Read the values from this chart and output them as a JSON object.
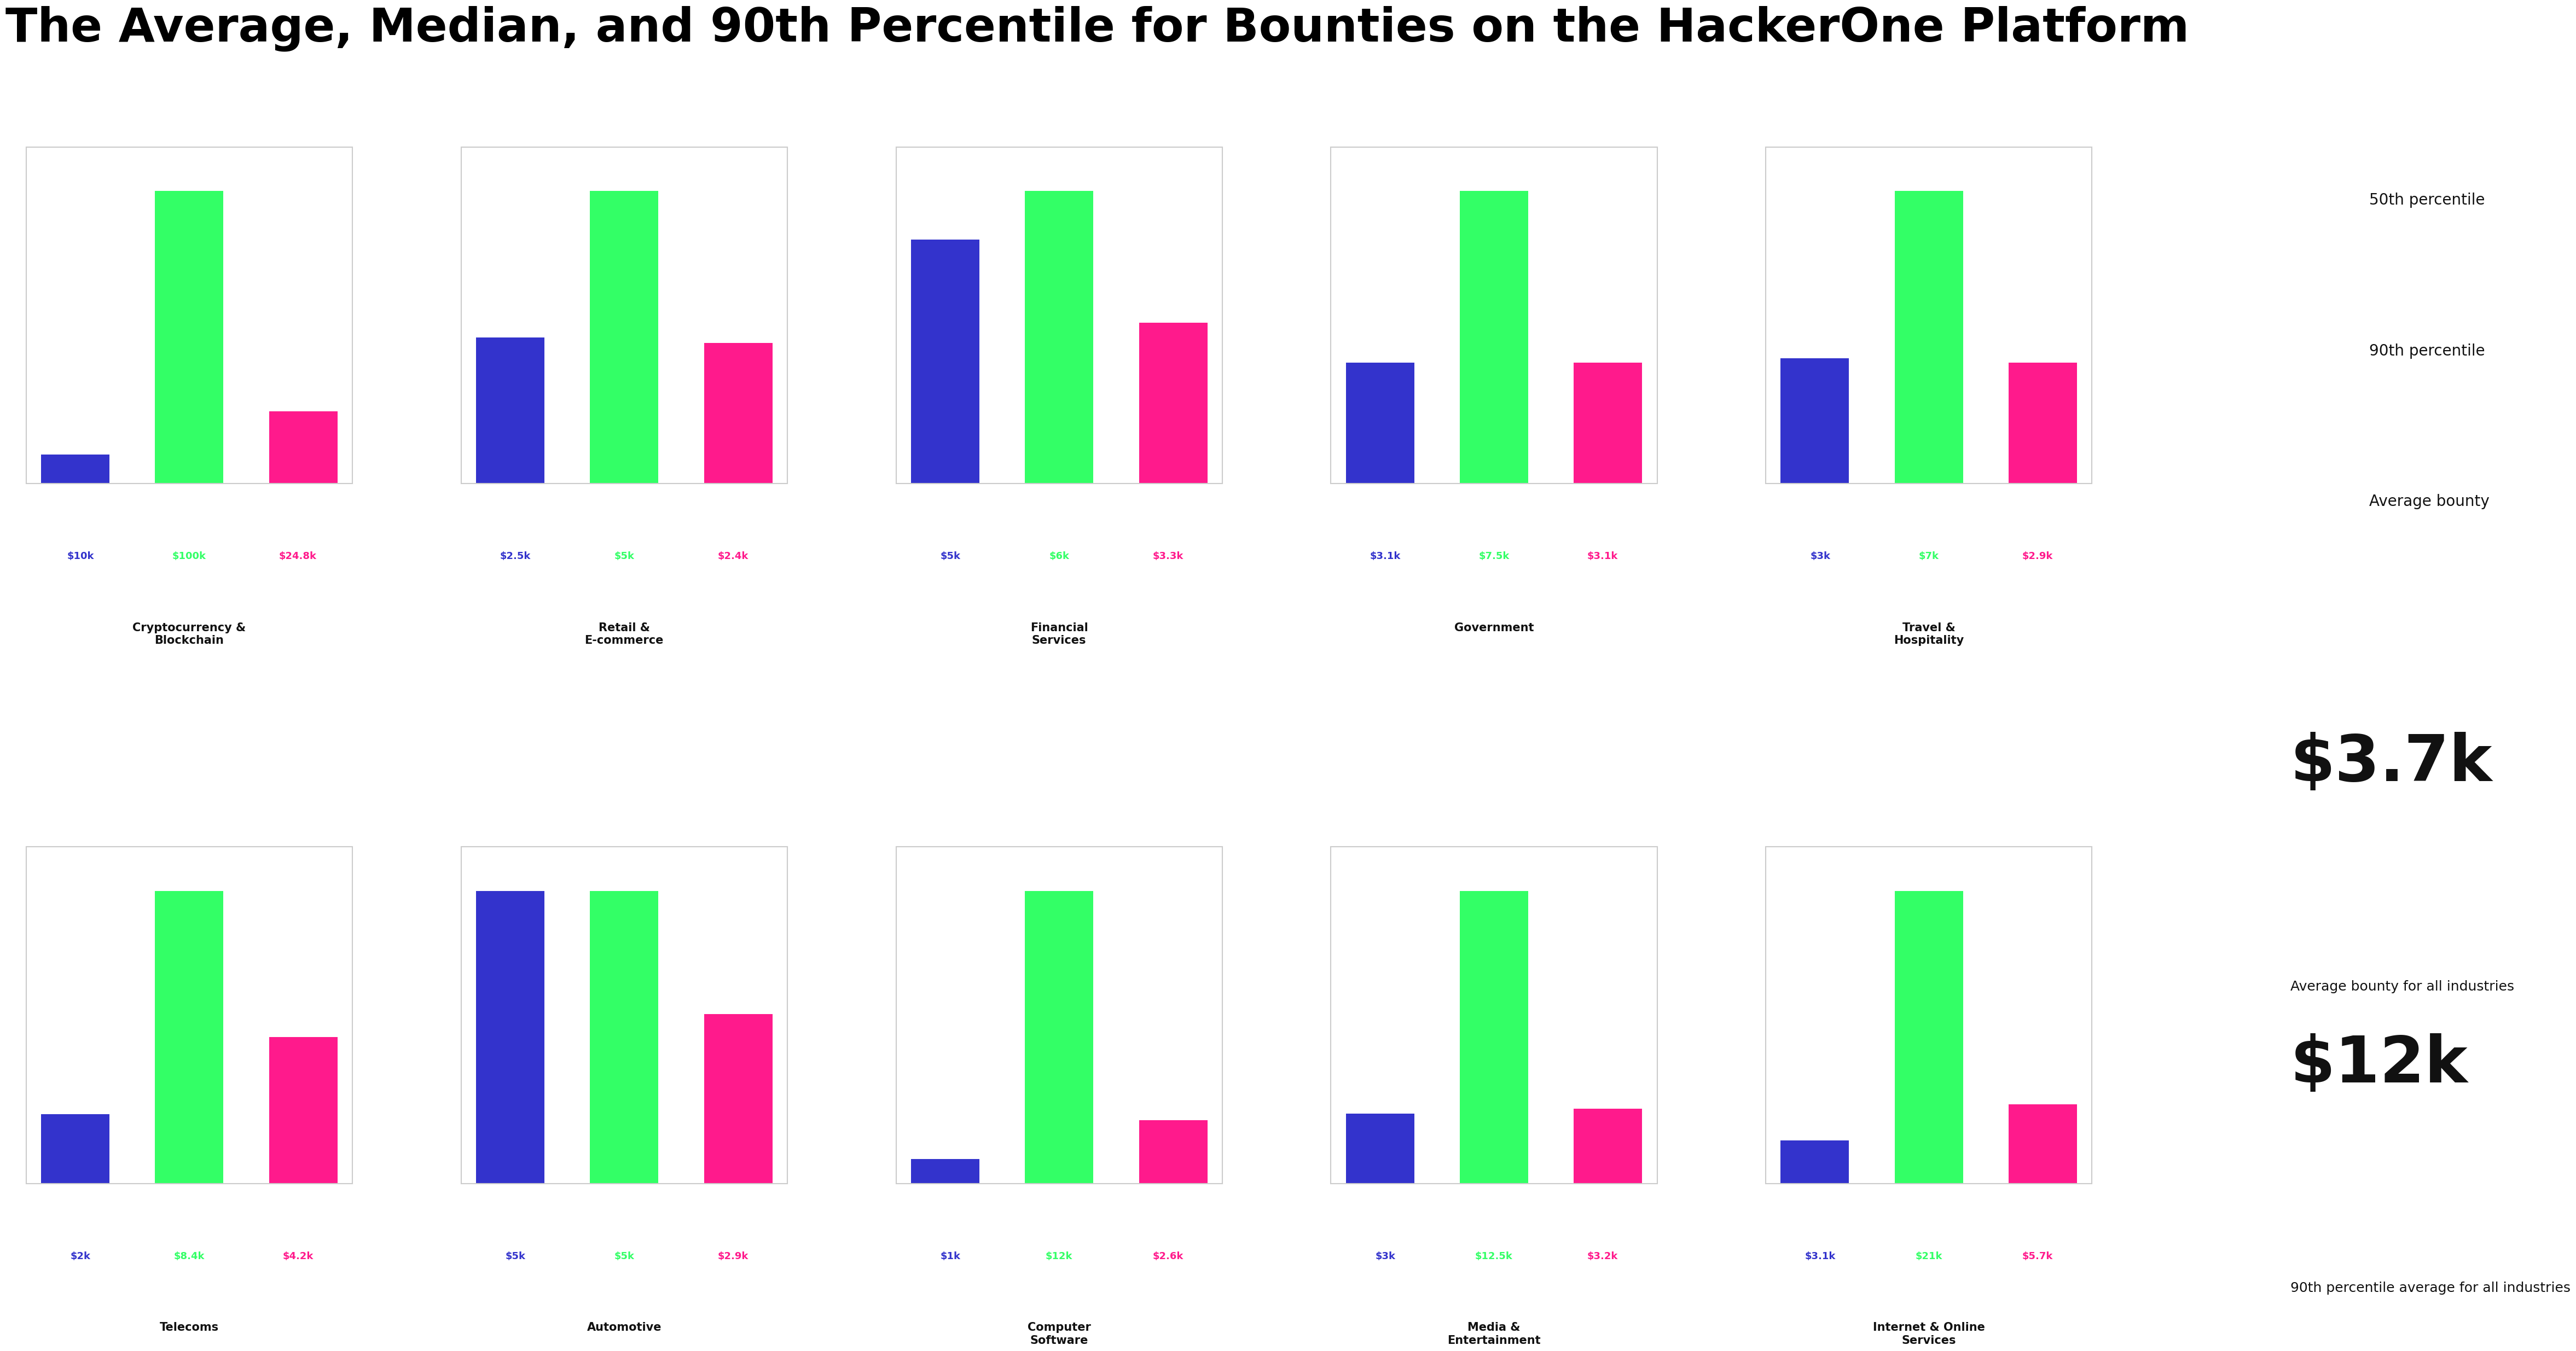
{
  "title": "The Average, Median, and 90th Percentile for Bounties on the HackerOne Platform",
  "industries": [
    {
      "name": "Cryptocurrency &\nBlockchain",
      "p50": 10000,
      "p90": 100000,
      "avg": 24800,
      "p50_label": "$10k",
      "p90_label": "$100k",
      "avg_label": "$24.8k"
    },
    {
      "name": "Retail &\nE-commerce",
      "p50": 2500,
      "p90": 5000,
      "avg": 2400,
      "p50_label": "$2.5k",
      "p90_label": "$5k",
      "avg_label": "$2.4k"
    },
    {
      "name": "Financial\nServices",
      "p50": 5000,
      "p90": 6000,
      "avg": 3300,
      "p50_label": "$5k",
      "p90_label": "$6k",
      "avg_label": "$3.3k"
    },
    {
      "name": "Government",
      "p50": 3100,
      "p90": 7500,
      "avg": 3100,
      "p50_label": "$3.1k",
      "p90_label": "$7.5k",
      "avg_label": "$3.1k"
    },
    {
      "name": "Travel &\nHospitality",
      "p50": 3000,
      "p90": 7000,
      "avg": 2900,
      "p50_label": "$3k",
      "p90_label": "$7k",
      "avg_label": "$2.9k"
    },
    {
      "name": "Telecoms",
      "p50": 2000,
      "p90": 8400,
      "avg": 4200,
      "p50_label": "$2k",
      "p90_label": "$8.4k",
      "avg_label": "$4.2k"
    },
    {
      "name": "Automotive",
      "p50": 5000,
      "p90": 5000,
      "avg": 2900,
      "p50_label": "$5k",
      "p90_label": "$5k",
      "avg_label": "$2.9k"
    },
    {
      "name": "Computer\nSoftware",
      "p50": 1000,
      "p90": 12000,
      "avg": 2600,
      "p50_label": "$1k",
      "p90_label": "$12k",
      "avg_label": "$2.6k"
    },
    {
      "name": "Media &\nEntertainment",
      "p50": 3000,
      "p90": 12500,
      "avg": 3200,
      "p50_label": "$3k",
      "p90_label": "$12.5k",
      "avg_label": "$3.2k"
    },
    {
      "name": "Internet & Online\nServices",
      "p50": 3100,
      "p90": 21000,
      "avg": 5700,
      "p50_label": "$3.1k",
      "p90_label": "$21k",
      "avg_label": "$5.7k"
    }
  ],
  "legend_labels": [
    "50th percentile",
    "90th percentile",
    "Average bounty"
  ],
  "legend_colors": [
    "#3333cc",
    "#33ff66",
    "#ff1a8c"
  ],
  "color_p50": "#3333cc",
  "color_p90": "#33ff66",
  "color_avg": "#ff1a8c",
  "overall_avg": "$3.7k",
  "overall_avg_label": "Average bounty for all industries",
  "overall_p90": "$12k",
  "overall_p90_label": "90th percentile average for all industries",
  "bg_color": "#ffffff",
  "title_fontsize": 28,
  "label_fontsize": 14,
  "name_fontsize": 16
}
